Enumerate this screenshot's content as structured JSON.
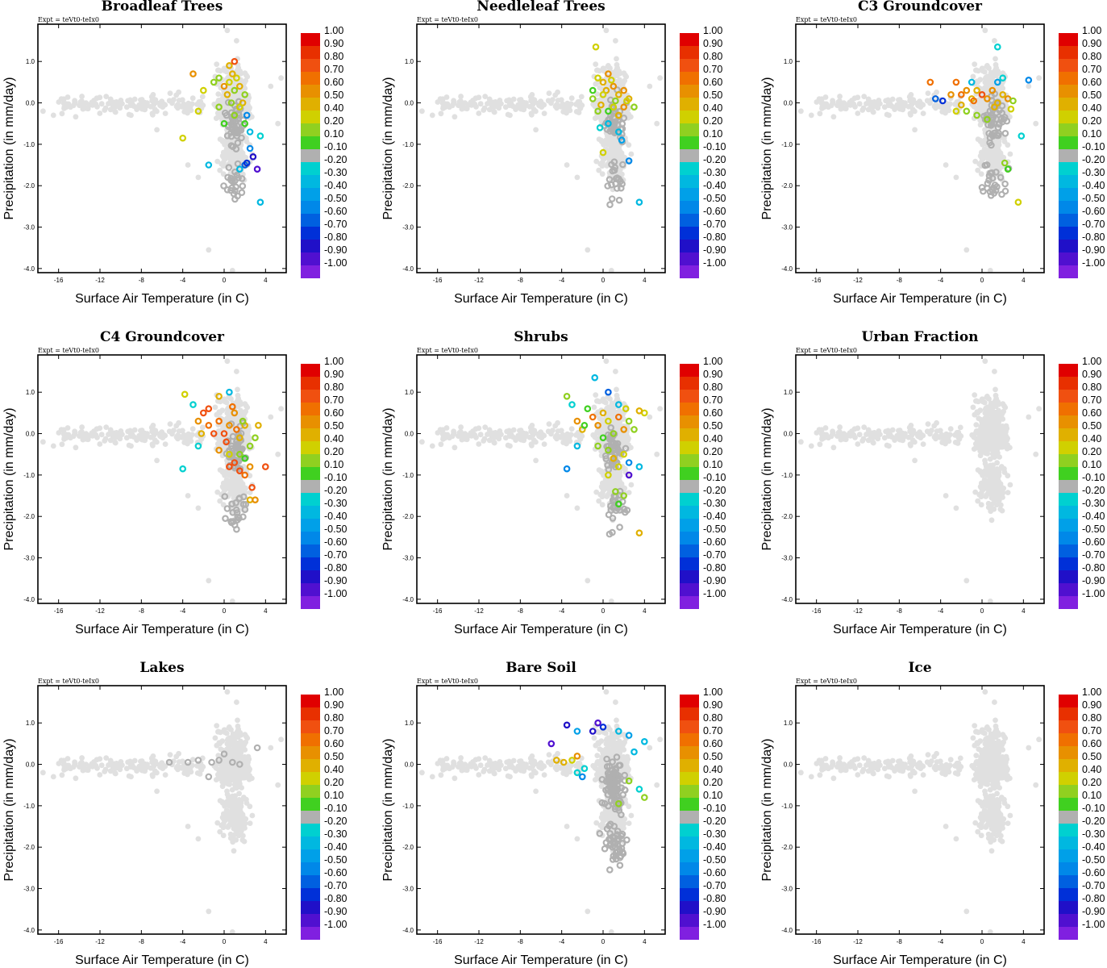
{
  "figure": {
    "expt_label": "Expt = teVt0-teIx0",
    "colors": {
      "background_points": "#e0e0e0",
      "neutral_points": "#b0b0b0",
      "frame": "#000000"
    }
  },
  "colorbar": {
    "labels": [
      "1.00",
      "0.90",
      "0.80",
      "0.70",
      "0.60",
      "0.50",
      "0.40",
      "0.20",
      "0.10",
      "-0.10",
      "-0.20",
      "-0.30",
      "-0.40",
      "-0.50",
      "-0.60",
      "-0.70",
      "-0.80",
      "-0.90",
      "-1.00"
    ],
    "colors": [
      "#e00000",
      "#e83000",
      "#f05010",
      "#f07000",
      "#e89000",
      "#e0b000",
      "#d0d000",
      "#90d020",
      "#40d020",
      "#b0b0b0",
      "#00d0d0",
      "#00b8e0",
      "#00a0e8",
      "#0088e8",
      "#0060e0",
      "#0030d8",
      "#2010c8",
      "#5010d0",
      "#8020e0"
    ]
  },
  "chart_data": [
    {
      "id": "broadleaf",
      "type": "scatter",
      "title": "Broadleaf Trees",
      "xlabel": "Surface Air Temperature (in C)",
      "ylabel": "Precipitation (in mm/day)",
      "xlim": [
        -18,
        6
      ],
      "ylim": [
        -4.1,
        1.9
      ],
      "xticks": [
        "-16",
        "-12",
        "-8",
        "-4",
        "0",
        "4"
      ],
      "yticks": [
        "1.0",
        "0.0",
        "-1.0",
        "-2.0",
        "-3.0",
        "-4.0"
      ],
      "seed": 101,
      "gray_count": 70,
      "colored_points": [
        [
          -3,
          0.7,
          0.6
        ],
        [
          -2.5,
          -0.2,
          0.3
        ],
        [
          -2,
          0.3,
          0.4
        ],
        [
          -4,
          -0.85,
          0.4
        ],
        [
          -1,
          0.5,
          0.15
        ],
        [
          -1.5,
          -1.5,
          -0.3
        ],
        [
          0,
          0.4,
          0.6
        ],
        [
          0.5,
          0.5,
          0.3
        ],
        [
          0.5,
          0.9,
          0.45
        ],
        [
          0.7,
          0.0,
          0.2
        ],
        [
          1,
          1.0,
          0.75
        ],
        [
          1,
          0.3,
          0.2
        ],
        [
          1,
          -0.3,
          0.15
        ],
        [
          1.5,
          0.4,
          0.5
        ],
        [
          1.2,
          0.6,
          0.35
        ],
        [
          2,
          0.2,
          0.15
        ],
        [
          2,
          -0.5,
          0.1
        ],
        [
          2.2,
          -0.3,
          -0.45
        ],
        [
          2.5,
          -0.7,
          -0.3
        ],
        [
          2.5,
          -1.1,
          -0.45
        ],
        [
          2.8,
          -1.3,
          -0.8
        ],
        [
          3.5,
          -0.8,
          -0.2
        ],
        [
          3.2,
          -1.6,
          -0.85
        ],
        [
          2,
          -1.5,
          -0.6
        ],
        [
          1.5,
          -1.6,
          -0.3
        ],
        [
          3.5,
          -2.4,
          -0.25
        ],
        [
          0,
          -0.5,
          0.1
        ],
        [
          0.3,
          0.2,
          0.45
        ],
        [
          -0.5,
          -0.1,
          0.2
        ],
        [
          1.8,
          0.0,
          0.5
        ],
        [
          2.2,
          -1.45,
          -0.7
        ],
        [
          0.8,
          0.7,
          0.5
        ],
        [
          1.5,
          -0.1,
          0.4
        ],
        [
          -0.5,
          0.6,
          0.2
        ]
      ]
    },
    {
      "id": "needleleaf",
      "type": "scatter",
      "title": "Needleleaf Trees",
      "xlabel": "Surface Air Temperature (in C)",
      "ylabel": "Precipitation (in mm/day)",
      "xlim": [
        -18,
        6
      ],
      "ylim": [
        -4.1,
        1.9
      ],
      "xticks": [
        "-16",
        "-12",
        "-8",
        "-4",
        "0",
        "4"
      ],
      "yticks": [
        "1.0",
        "0.0",
        "-1.0",
        "-2.0",
        "-3.0",
        "-4.0"
      ],
      "seed": 202,
      "gray_count": 60,
      "colored_points": [
        [
          -0.7,
          1.35,
          0.4
        ],
        [
          -0.5,
          0.6,
          0.35
        ],
        [
          0,
          0.5,
          0.45
        ],
        [
          0.5,
          0.7,
          0.6
        ],
        [
          0.3,
          0.3,
          0.45
        ],
        [
          1,
          0.4,
          0.55
        ],
        [
          1.5,
          0.2,
          0.5
        ],
        [
          2,
          0.3,
          0.6
        ],
        [
          -1,
          0.1,
          0.2
        ],
        [
          -0.5,
          -0.2,
          0.15
        ],
        [
          0,
          0.2,
          0.4
        ],
        [
          0.5,
          -0.2,
          0.1
        ],
        [
          1,
          -0.1,
          0.3
        ],
        [
          1.5,
          -0.3,
          0.5
        ],
        [
          2,
          -0.1,
          0.55
        ],
        [
          2.5,
          0.1,
          0.45
        ],
        [
          3,
          -0.1,
          0.2
        ],
        [
          -0.3,
          -0.6,
          -0.2
        ],
        [
          0.5,
          -0.5,
          -0.3
        ],
        [
          1.5,
          -0.7,
          -0.3
        ],
        [
          1.8,
          -0.9,
          -0.4
        ],
        [
          0,
          -1.2,
          0.4
        ],
        [
          2.5,
          -1.4,
          -0.5
        ],
        [
          3.5,
          -2.4,
          -0.25
        ],
        [
          -1,
          0.3,
          0.1
        ],
        [
          1.2,
          0.05,
          0.25
        ],
        [
          0.8,
          0.55,
          0.4
        ],
        [
          -0.2,
          -0.05,
          0.45
        ],
        [
          2.3,
          0.05,
          0.35
        ]
      ]
    },
    {
      "id": "c3",
      "type": "scatter",
      "title": "C3 Groundcover",
      "xlabel": "Surface Air Temperature (in C)",
      "ylabel": "Precipitation (in mm/day)",
      "xlim": [
        -18,
        6
      ],
      "ylim": [
        -4.1,
        1.9
      ],
      "xticks": [
        "-16",
        "-12",
        "-8",
        "-4",
        "0",
        "4"
      ],
      "yticks": [
        "1.0",
        "0.0",
        "-1.0",
        "-2.0",
        "-3.0",
        "-4.0"
      ],
      "seed": 303,
      "gray_count": 75,
      "colored_points": [
        [
          -5,
          0.5,
          0.7
        ],
        [
          -4.5,
          0.1,
          -0.55
        ],
        [
          -3.8,
          0.05,
          -0.65
        ],
        [
          -2.5,
          0.5,
          0.7
        ],
        [
          -3,
          0.2,
          0.6
        ],
        [
          -2,
          0.2,
          0.7
        ],
        [
          -1.5,
          0.3,
          0.6
        ],
        [
          -1,
          0.1,
          0.5
        ],
        [
          -0.5,
          0.3,
          0.45
        ],
        [
          0,
          0.2,
          0.75
        ],
        [
          0.5,
          0.1,
          0.55
        ],
        [
          1,
          0.3,
          0.6
        ],
        [
          1.5,
          0.0,
          0.45
        ],
        [
          2,
          0.2,
          0.5
        ],
        [
          2.5,
          0.1,
          0.55
        ],
        [
          3,
          0.05,
          0.2
        ],
        [
          -2.5,
          -0.2,
          0.3
        ],
        [
          -1.5,
          -0.2,
          0.2
        ],
        [
          -0.5,
          -0.3,
          0.15
        ],
        [
          0.5,
          -0.4,
          0.2
        ],
        [
          -1,
          0.5,
          -0.3
        ],
        [
          1.5,
          0.5,
          -0.35
        ],
        [
          2,
          0.6,
          -0.2
        ],
        [
          4.5,
          0.55,
          -0.5
        ],
        [
          3.8,
          -0.8,
          -0.2
        ],
        [
          1.5,
          1.35,
          -0.2
        ],
        [
          2.2,
          -1.45,
          0.2
        ],
        [
          2.5,
          -1.6,
          0.1
        ],
        [
          3.5,
          -2.4,
          0.3
        ],
        [
          -0.8,
          0.05,
          0.65
        ],
        [
          1.2,
          -0.1,
          0.5
        ],
        [
          -2,
          -0.05,
          0.45
        ],
        [
          2.8,
          -0.15,
          0.4
        ]
      ]
    },
    {
      "id": "c4",
      "type": "scatter",
      "title": "C4 Groundcover",
      "xlabel": "Surface Air Temperature (in C)",
      "ylabel": "Precipitation (in mm/day)",
      "xlim": [
        -18,
        6
      ],
      "ylim": [
        -4.1,
        1.9
      ],
      "xticks": [
        "-16",
        "-12",
        "-8",
        "-4",
        "0",
        "4"
      ],
      "yticks": [
        "1.0",
        "0.0",
        "-1.0",
        "-2.0",
        "-3.0",
        "-4.0"
      ],
      "seed": 404,
      "gray_count": 70,
      "colored_points": [
        [
          -3.8,
          0.95,
          0.4
        ],
        [
          -3,
          0.7,
          -0.2
        ],
        [
          -2.5,
          0.3,
          0.6
        ],
        [
          -2.2,
          0.0,
          0.45
        ],
        [
          -2,
          0.5,
          0.75
        ],
        [
          -1.5,
          0.2,
          0.7
        ],
        [
          -1,
          0.0,
          0.8
        ],
        [
          -0.5,
          0.3,
          0.7
        ],
        [
          0,
          0.0,
          0.75
        ],
        [
          0.5,
          0.2,
          0.55
        ],
        [
          1,
          0.5,
          0.6
        ],
        [
          1.5,
          -0.1,
          0.5
        ],
        [
          2,
          0.2,
          0.45
        ],
        [
          2.5,
          -0.3,
          0.2
        ],
        [
          3,
          -0.1,
          0.15
        ],
        [
          -0.5,
          -0.4,
          0.6
        ],
        [
          0.5,
          -0.5,
          0.3
        ],
        [
          1,
          -0.7,
          0.75
        ],
        [
          1.5,
          -0.5,
          0.2
        ],
        [
          2,
          -0.6,
          0.1
        ],
        [
          0.5,
          -0.8,
          0.75
        ],
        [
          1.5,
          -0.9,
          0.8
        ],
        [
          2,
          -1.0,
          0.7
        ],
        [
          2.5,
          -0.8,
          0.6
        ],
        [
          2.7,
          -1.3,
          0.8
        ],
        [
          2.5,
          -1.6,
          0.45
        ],
        [
          3,
          -1.6,
          0.6
        ],
        [
          4,
          -0.8,
          0.8
        ],
        [
          -4,
          -0.85,
          -0.2
        ],
        [
          -2.5,
          -0.3,
          -0.2
        ],
        [
          0.5,
          1.0,
          -0.3
        ],
        [
          -0.5,
          0.9,
          0.5
        ],
        [
          0.8,
          0.65,
          0.7
        ],
        [
          -1.5,
          0.6,
          0.75
        ],
        [
          0.2,
          -0.2,
          0.75
        ],
        [
          1.8,
          0.3,
          0.15
        ],
        [
          3.3,
          0.2,
          0.5
        ],
        [
          1.2,
          0.1,
          0.7
        ]
      ]
    },
    {
      "id": "shrubs",
      "type": "scatter",
      "title": "Shrubs",
      "xlabel": "Surface Air Temperature (in C)",
      "ylabel": "Precipitation (in mm/day)",
      "xlim": [
        -18,
        6
      ],
      "ylim": [
        -4.1,
        1.9
      ],
      "xticks": [
        "-16",
        "-12",
        "-8",
        "-4",
        "0",
        "4"
      ],
      "yticks": [
        "1.0",
        "0.0",
        "-1.0",
        "-2.0",
        "-3.0",
        "-4.0"
      ],
      "seed": 505,
      "gray_count": 70,
      "colored_points": [
        [
          -3.5,
          0.9,
          0.2
        ],
        [
          -3,
          0.7,
          -0.2
        ],
        [
          -2.5,
          0.3,
          0.6
        ],
        [
          -2,
          0.1,
          0.5
        ],
        [
          -3.5,
          -0.85,
          -0.5
        ],
        [
          -2.5,
          -0.3,
          -0.3
        ],
        [
          -1.5,
          0.6,
          0.1
        ],
        [
          -1,
          0.4,
          0.65
        ],
        [
          -0.5,
          0.2,
          0.6
        ],
        [
          0,
          0.5,
          0.5
        ],
        [
          0.5,
          0.3,
          0.4
        ],
        [
          1,
          0.0,
          0.15
        ],
        [
          1.5,
          0.4,
          0.7
        ],
        [
          2,
          0.1,
          0.6
        ],
        [
          2.5,
          0.3,
          0.2
        ],
        [
          3,
          0.1,
          0.15
        ],
        [
          4,
          0.5,
          0.4
        ],
        [
          3.5,
          0.55,
          0.45
        ],
        [
          -0.5,
          -0.3,
          0.15
        ],
        [
          0,
          -0.1,
          0.1
        ],
        [
          0.5,
          -0.4,
          0.2
        ],
        [
          1,
          -0.6,
          0.45
        ],
        [
          1.5,
          -0.8,
          0.4
        ],
        [
          2,
          -0.5,
          0.3
        ],
        [
          2.5,
          -0.7,
          -0.5
        ],
        [
          3.5,
          -0.8,
          -0.25
        ],
        [
          2.5,
          -1.0,
          -0.85
        ],
        [
          0.5,
          -1.0,
          0.4
        ],
        [
          1.2,
          -1.4,
          0.15
        ],
        [
          2,
          -1.5,
          0.2
        ],
        [
          1.5,
          -1.7,
          0.1
        ],
        [
          3.5,
          -2.4,
          0.45
        ],
        [
          -0.8,
          1.35,
          -0.3
        ],
        [
          0.5,
          1.0,
          -0.6
        ],
        [
          1.5,
          0.7,
          -0.3
        ],
        [
          2.2,
          0.6,
          0.4
        ],
        [
          -1.8,
          0.2,
          0.1
        ]
      ]
    },
    {
      "id": "urban",
      "type": "scatter",
      "title": "Urban Fraction",
      "xlabel": "Surface Air Temperature (in C)",
      "ylabel": "Precipitation (in mm/day)",
      "xlim": [
        -18,
        6
      ],
      "ylim": [
        -4.1,
        1.9
      ],
      "xticks": [
        "-16",
        "-12",
        "-8",
        "-4",
        "0",
        "4"
      ],
      "yticks": [
        "1.0",
        "0.0",
        "-1.0",
        "-2.0",
        "-3.0",
        "-4.0"
      ],
      "seed": 606,
      "gray_count": 0,
      "colored_points": []
    },
    {
      "id": "lakes",
      "type": "scatter",
      "title": "Lakes",
      "xlabel": "Surface Air Temperature (in C)",
      "ylabel": "Precipitation (in mm/day)",
      "xlim": [
        -18,
        6
      ],
      "ylim": [
        -4.1,
        1.9
      ],
      "xticks": [
        "-16",
        "-12",
        "-8",
        "-4",
        "0",
        "4"
      ],
      "yticks": [
        "1.0",
        "0.0",
        "-1.0",
        "-2.0",
        "-3.0",
        "-4.0"
      ],
      "seed": 707,
      "gray_count": 0,
      "colored_points": [
        [
          -5.3,
          0.05,
          0.0
        ],
        [
          -3.5,
          0.05,
          0.0
        ],
        [
          -2.5,
          0.1,
          0.0
        ],
        [
          -1.2,
          0.05,
          0.0
        ],
        [
          -1.5,
          -0.3,
          0.0
        ],
        [
          -0.5,
          0.1,
          0.0
        ],
        [
          0,
          0.25,
          0.0
        ],
        [
          0.8,
          0.05,
          0.0
        ],
        [
          1.5,
          0.0,
          0.0
        ],
        [
          3.2,
          0.4,
          0.0
        ]
      ]
    },
    {
      "id": "baresoil",
      "type": "scatter",
      "title": "Bare Soil",
      "xlabel": "Surface Air Temperature (in C)",
      "ylabel": "Precipitation (in mm/day)",
      "xlim": [
        -18,
        6
      ],
      "ylim": [
        -4.1,
        1.9
      ],
      "xticks": [
        "-16",
        "-12",
        "-8",
        "-4",
        "0",
        "4"
      ],
      "yticks": [
        "1.0",
        "0.0",
        "-1.0",
        "-2.0",
        "-3.0",
        "-4.0"
      ],
      "seed": 808,
      "gray_count": 140,
      "colored_points": [
        [
          -5,
          0.5,
          -0.85
        ],
        [
          -4.5,
          0.1,
          0.5
        ],
        [
          -3.8,
          0.05,
          0.45
        ],
        [
          -3,
          0.1,
          0.3
        ],
        [
          -2.5,
          0.2,
          0.6
        ],
        [
          -3.5,
          0.95,
          -0.8
        ],
        [
          -2.5,
          0.8,
          -0.4
        ],
        [
          -1,
          0.8,
          -0.8
        ],
        [
          0,
          0.9,
          -0.65
        ],
        [
          1.5,
          0.8,
          -0.3
        ],
        [
          2.5,
          0.7,
          -0.35
        ],
        [
          4,
          0.55,
          -0.3
        ],
        [
          -2.5,
          -0.2,
          -0.2
        ],
        [
          -2,
          -0.3,
          -0.5
        ],
        [
          -1.8,
          -0.1,
          -0.2
        ],
        [
          2.5,
          -0.4,
          0.15
        ],
        [
          3.5,
          -0.6,
          -0.2
        ],
        [
          4,
          -0.8,
          0.2
        ],
        [
          1.5,
          -0.95,
          0.2
        ],
        [
          -0.5,
          1.0,
          -0.85
        ],
        [
          3,
          0.3,
          -0.25
        ]
      ]
    },
    {
      "id": "ice",
      "type": "scatter",
      "title": "Ice",
      "xlabel": "Surface Air Temperature (in C)",
      "ylabel": "Precipitation (in mm/day)",
      "xlim": [
        -18,
        6
      ],
      "ylim": [
        -4.1,
        1.9
      ],
      "xticks": [
        "-16",
        "-12",
        "-8",
        "-4",
        "0",
        "4"
      ],
      "yticks": [
        "1.0",
        "0.0",
        "-1.0",
        "-2.0",
        "-3.0",
        "-4.0"
      ],
      "seed": 909,
      "gray_count": 0,
      "colored_points": []
    }
  ]
}
